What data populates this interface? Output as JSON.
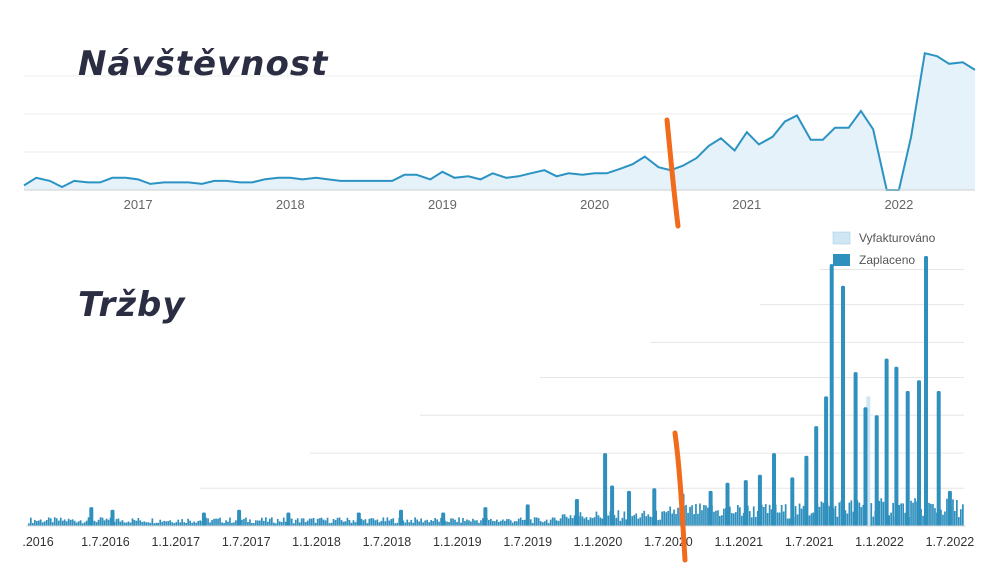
{
  "titles": {
    "traffic": "Návštěvnost",
    "revenue": "Tržby"
  },
  "colors": {
    "line": "#2b93c3",
    "area": "#e6f2fa",
    "bar_paid": "#2f8fbd",
    "bar_invoiced": "#cfe6f5",
    "marker": "#f26a1b",
    "title": "#2b2d42"
  },
  "chart_data": [
    {
      "type": "area",
      "title": "Návštěvnost",
      "x_tick_labels": [
        "2017",
        "2018",
        "2019",
        "2020",
        "2021",
        "2022"
      ],
      "x_range": [
        2016.25,
        2022.5
      ],
      "y_range": [
        0,
        100
      ],
      "grid": true,
      "series": [
        {
          "values": [
            [
              2016.25,
              3
            ],
            [
              2016.33,
              8
            ],
            [
              2016.42,
              6
            ],
            [
              2016.5,
              2
            ],
            [
              2016.58,
              6
            ],
            [
              2016.67,
              5
            ],
            [
              2016.75,
              5
            ],
            [
              2016.83,
              8
            ],
            [
              2016.92,
              8
            ],
            [
              2017.0,
              7
            ],
            [
              2017.08,
              4
            ],
            [
              2017.17,
              5
            ],
            [
              2017.25,
              5
            ],
            [
              2017.33,
              5
            ],
            [
              2017.42,
              4
            ],
            [
              2017.5,
              6
            ],
            [
              2017.58,
              6
            ],
            [
              2017.67,
              5
            ],
            [
              2017.75,
              5
            ],
            [
              2017.83,
              7
            ],
            [
              2017.92,
              8
            ],
            [
              2018.0,
              8
            ],
            [
              2018.08,
              7
            ],
            [
              2018.17,
              8
            ],
            [
              2018.25,
              7
            ],
            [
              2018.33,
              6
            ],
            [
              2018.42,
              6
            ],
            [
              2018.5,
              6
            ],
            [
              2018.58,
              6
            ],
            [
              2018.67,
              6
            ],
            [
              2018.75,
              10
            ],
            [
              2018.83,
              10
            ],
            [
              2018.92,
              7
            ],
            [
              2019.0,
              12
            ],
            [
              2019.08,
              8
            ],
            [
              2019.17,
              9
            ],
            [
              2019.25,
              7
            ],
            [
              2019.33,
              11
            ],
            [
              2019.42,
              8
            ],
            [
              2019.5,
              9
            ],
            [
              2019.58,
              11
            ],
            [
              2019.67,
              13
            ],
            [
              2019.75,
              9
            ],
            [
              2019.83,
              11
            ],
            [
              2019.92,
              10
            ],
            [
              2020.0,
              11
            ],
            [
              2020.08,
              11
            ],
            [
              2020.17,
              14
            ],
            [
              2020.25,
              17
            ],
            [
              2020.33,
              22
            ],
            [
              2020.42,
              15
            ],
            [
              2020.5,
              13
            ],
            [
              2020.58,
              16
            ],
            [
              2020.67,
              21
            ],
            [
              2020.75,
              29
            ],
            [
              2020.83,
              34
            ],
            [
              2020.92,
              26
            ],
            [
              2021.0,
              38
            ],
            [
              2021.08,
              30
            ],
            [
              2021.17,
              35
            ],
            [
              2021.25,
              45
            ],
            [
              2021.33,
              49
            ],
            [
              2021.42,
              33
            ],
            [
              2021.5,
              33
            ],
            [
              2021.58,
              41
            ],
            [
              2021.67,
              41
            ],
            [
              2021.75,
              52
            ],
            [
              2021.83,
              40
            ],
            [
              2021.92,
              0
            ],
            [
              2022.0,
              0
            ],
            [
              2022.08,
              35
            ],
            [
              2022.17,
              90
            ],
            [
              2022.25,
              88
            ],
            [
              2022.33,
              83
            ],
            [
              2022.42,
              84
            ],
            [
              2022.5,
              79
            ]
          ]
        }
      ]
    },
    {
      "type": "bar",
      "title": "Tržby",
      "x_tick_labels": [
        ".2016",
        "1.7.2016",
        "1.1.2017",
        "1.7.2017",
        "1.1.2018",
        "1.7.2018",
        "1.1.2019",
        "1.7.2019",
        "1.1.2020",
        "1.7.2020",
        "1.1.2021",
        "1.7.2021",
        "1.1.2022",
        "1.7.2022"
      ],
      "x_range": [
        2015.95,
        2022.6
      ],
      "y_range": [
        0,
        100
      ],
      "grid": true,
      "legend": {
        "position": "top-right",
        "items": [
          "Vyfakturováno",
          "Zaplaceno"
        ]
      },
      "series": [
        {
          "name": "Vyfakturováno",
          "peaks": [
            [
              2021.92,
              48
            ]
          ]
        },
        {
          "name": "Zaplaceno",
          "peaks": [
            [
              2016.4,
              7
            ],
            [
              2016.55,
              6
            ],
            [
              2017.2,
              5
            ],
            [
              2017.45,
              6
            ],
            [
              2017.8,
              5
            ],
            [
              2018.3,
              5
            ],
            [
              2018.6,
              6
            ],
            [
              2018.9,
              5
            ],
            [
              2019.2,
              7
            ],
            [
              2019.5,
              8
            ],
            [
              2019.85,
              10
            ],
            [
              2020.05,
              27
            ],
            [
              2020.1,
              15
            ],
            [
              2020.22,
              13
            ],
            [
              2020.4,
              14
            ],
            [
              2020.6,
              12
            ],
            [
              2020.8,
              13
            ],
            [
              2020.92,
              16
            ],
            [
              2021.05,
              17
            ],
            [
              2021.15,
              19
            ],
            [
              2021.25,
              27
            ],
            [
              2021.38,
              18
            ],
            [
              2021.48,
              26
            ],
            [
              2021.55,
              37
            ],
            [
              2021.62,
              48
            ],
            [
              2021.66,
              97
            ],
            [
              2021.74,
              89
            ],
            [
              2021.83,
              57
            ],
            [
              2021.9,
              44
            ],
            [
              2021.98,
              41
            ],
            [
              2022.05,
              62
            ],
            [
              2022.12,
              59
            ],
            [
              2022.2,
              50
            ],
            [
              2022.28,
              54
            ],
            [
              2022.33,
              100
            ],
            [
              2022.42,
              50
            ],
            [
              2022.5,
              13
            ]
          ]
        }
      ]
    }
  ]
}
